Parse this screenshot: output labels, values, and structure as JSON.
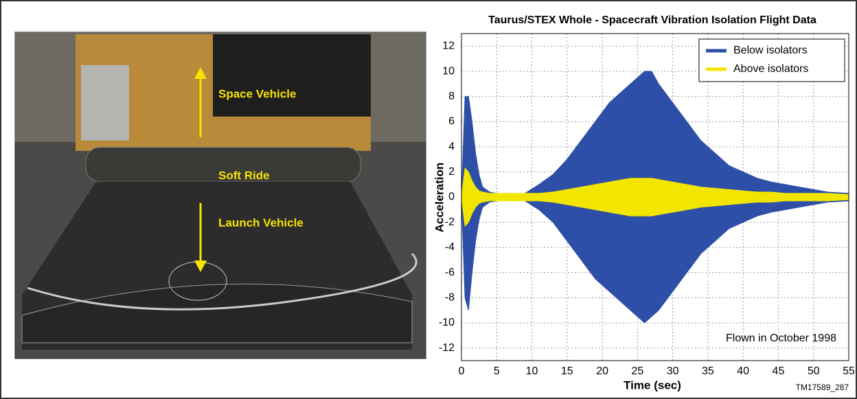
{
  "photo": {
    "labels": [
      "Space Vehicle",
      "Soft Ride",
      "Launch Vehicle"
    ]
  },
  "figure_id": "TM17589_287",
  "chart_data": {
    "type": "band",
    "title": "Taurus/STEX Whole - Spacecraft Vibration Isolation Flight Data",
    "x_label": "Time (sec)",
    "y_label": "Acceleration",
    "x": [
      0,
      0.5,
      1,
      1.5,
      2,
      2.5,
      3,
      4,
      5,
      7,
      9,
      11,
      13,
      15,
      17,
      19,
      21,
      23,
      24,
      25,
      26,
      27,
      28,
      30,
      32,
      34,
      36,
      38,
      40,
      42,
      44,
      46,
      48,
      50,
      52,
      55
    ],
    "series": [
      {
        "name": "Below isolators",
        "color": "#2e4fa8",
        "upper": [
          0,
          8,
          8,
          6,
          3.5,
          1.8,
          0.8,
          0.4,
          0.3,
          0.3,
          0.3,
          1,
          1.8,
          3,
          4.5,
          6,
          7.5,
          8.5,
          9,
          9.5,
          10,
          10,
          9,
          7.5,
          6,
          4.5,
          3.5,
          2.5,
          2,
          1.5,
          1.2,
          1,
          0.8,
          0.6,
          0.4,
          0.3
        ],
        "lower": [
          0,
          -8,
          -9,
          -6,
          -3.5,
          -1.8,
          -0.8,
          -0.4,
          -0.3,
          -0.3,
          -0.3,
          -1,
          -2,
          -3.5,
          -5,
          -6.5,
          -7.5,
          -8.5,
          -9,
          -9.5,
          -10,
          -9.5,
          -9,
          -7.5,
          -6,
          -4.5,
          -3.5,
          -2.5,
          -2,
          -1.5,
          -1.2,
          -1,
          -0.8,
          -0.6,
          -0.4,
          -0.3
        ]
      },
      {
        "name": "Above isolators",
        "color": "#f2e600",
        "upper": [
          0,
          2.3,
          2,
          1.3,
          0.8,
          0.5,
          0.4,
          0.3,
          0.3,
          0.3,
          0.3,
          0.3,
          0.4,
          0.6,
          0.8,
          1,
          1.2,
          1.4,
          1.5,
          1.5,
          1.5,
          1.5,
          1.4,
          1.2,
          1,
          0.8,
          0.7,
          0.6,
          0.5,
          0.4,
          0.4,
          0.3,
          0.3,
          0.3,
          0.3,
          0.2
        ],
        "lower": [
          0,
          -2.3,
          -2,
          -1.3,
          -0.8,
          -0.5,
          -0.4,
          -0.3,
          -0.3,
          -0.3,
          -0.3,
          -0.3,
          -0.4,
          -0.6,
          -0.8,
          -1,
          -1.2,
          -1.4,
          -1.5,
          -1.5,
          -1.5,
          -1.5,
          -1.4,
          -1.2,
          -1,
          -0.8,
          -0.7,
          -0.6,
          -0.5,
          -0.4,
          -0.4,
          -0.3,
          -0.3,
          -0.3,
          -0.3,
          -0.2
        ]
      }
    ],
    "xlim": [
      0,
      55
    ],
    "xticks": [
      0,
      5,
      10,
      15,
      20,
      25,
      30,
      35,
      40,
      45,
      50,
      55
    ],
    "ylim": [
      -13,
      13
    ],
    "yticks": [
      -12,
      -10,
      -8,
      -6,
      -4,
      -2,
      0,
      2,
      4,
      6,
      8,
      10,
      12
    ],
    "grid": true,
    "legend": "upper right",
    "annotations": [
      "Flown in October 1998"
    ]
  }
}
